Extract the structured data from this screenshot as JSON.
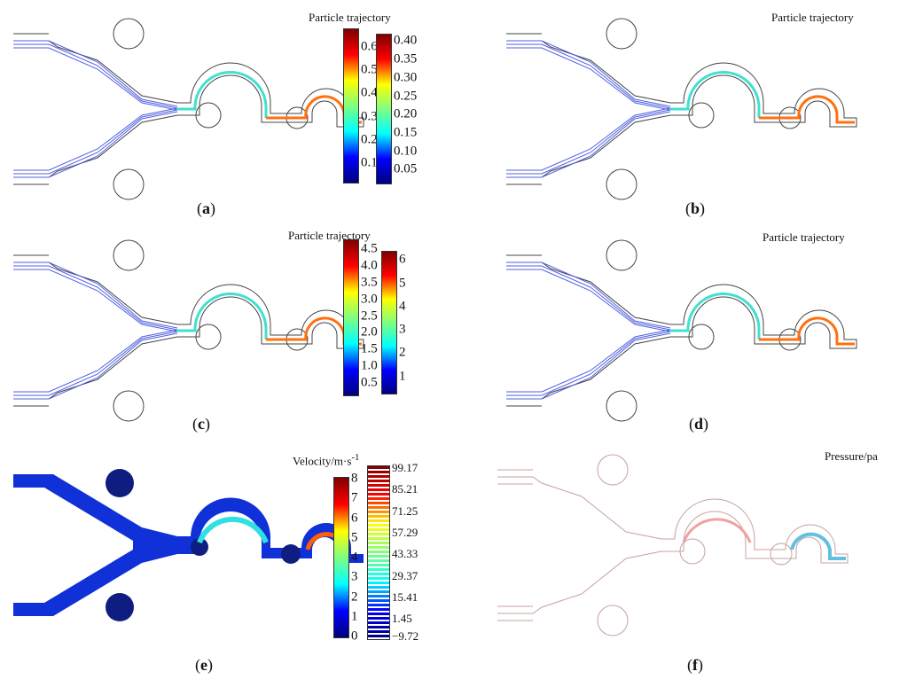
{
  "panels": [
    {
      "label": "a",
      "colorbar_title": "Particle trajectory",
      "ticks": [
        "0.1",
        "0.2",
        "0.3",
        "0.4",
        "0.5",
        "0.6"
      ],
      "tick_values": [
        0.1,
        0.2,
        0.3,
        0.4,
        0.5,
        0.6
      ],
      "range": [
        0.02,
        0.68
      ],
      "style": "trajectory"
    },
    {
      "label": "b",
      "colorbar_title": "Particle trajectory",
      "ticks": [
        "0.05",
        "0.10",
        "0.15",
        "0.20",
        "0.25",
        "0.30",
        "0.35",
        "0.40"
      ],
      "tick_values": [
        0.05,
        0.1,
        0.15,
        0.2,
        0.25,
        0.3,
        0.35,
        0.4
      ],
      "range": [
        0.015,
        0.42
      ],
      "style": "trajectory"
    },
    {
      "label": "c",
      "colorbar_title": "Particle trajectory",
      "ticks": [
        "0.5",
        "1.0",
        "1.5",
        "2.0",
        "2.5",
        "3.0",
        "3.5",
        "4.0",
        "4.5"
      ],
      "tick_values": [
        0.5,
        1,
        1.5,
        2,
        2.5,
        3,
        3.5,
        4,
        4.5
      ],
      "range": [
        0.15,
        4.8
      ],
      "style": "trajectory"
    },
    {
      "label": "d",
      "colorbar_title": "Particle trajectory",
      "ticks": [
        "1",
        "2",
        "3",
        "4",
        "5",
        "6"
      ],
      "tick_values": [
        1,
        2,
        3,
        4,
        5,
        6
      ],
      "range": [
        0.3,
        6.4
      ],
      "style": "trajectory"
    },
    {
      "label": "e",
      "colorbar_title": "Velocity/m·s",
      "colorbar_title_sup": "-1",
      "ticks": [
        "0",
        "1",
        "2",
        "3",
        "4",
        "5",
        "6",
        "7",
        "8"
      ],
      "tick_values": [
        0,
        1,
        2,
        3,
        4,
        5,
        6,
        7,
        8
      ],
      "range": [
        0,
        8.1
      ],
      "style": "velocity"
    },
    {
      "label": "f",
      "colorbar_title": "Pressure/pa",
      "ticks": [
        "99.17",
        "85.21",
        "71.25",
        "57.29",
        "43.33",
        "29.37",
        "15.41",
        "1.45",
        "−9.72"
      ],
      "tick_values": [
        99.17,
        85.21,
        71.25,
        57.29,
        43.33,
        29.37,
        15.41,
        1.45,
        -9.72
      ],
      "range": [
        -11,
        101
      ],
      "style": "pressure"
    }
  ],
  "colormap": [
    "#00007f",
    "#0000ff",
    "#00ffff",
    "#7fff7f",
    "#ffff00",
    "#ff0000",
    "#7f0000"
  ]
}
